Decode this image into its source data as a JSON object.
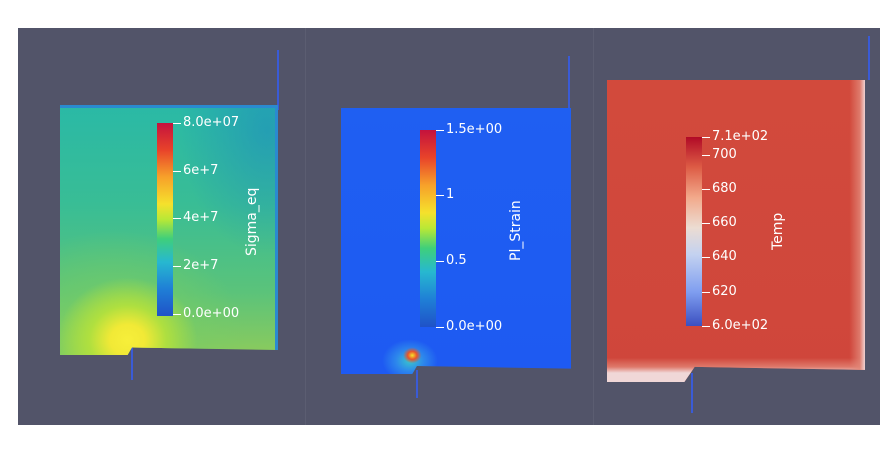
{
  "panels": [
    {
      "title": "Sigma_eq",
      "ticks": [
        "8.0e+07",
        "6e+7",
        "4e+7",
        "2e+7",
        "0.0e+00"
      ],
      "colormap": "jet"
    },
    {
      "title": "Pl_Strain",
      "ticks": [
        "1.5e+00",
        "1",
        "0.5",
        "0.0e+00"
      ],
      "colormap": "jet"
    },
    {
      "title": "Temp",
      "ticks": [
        "7.1e+02",
        "700",
        "680",
        "660",
        "640",
        "620",
        "6.0e+02"
      ],
      "colormap": "cool-to-warm"
    }
  ],
  "colors": {
    "background": "#525469",
    "axis": "#3a5bd6",
    "panel1_field": "#2fb7a0",
    "panel2_field": "#1e5af2",
    "panel3_field": "#d0483b"
  }
}
